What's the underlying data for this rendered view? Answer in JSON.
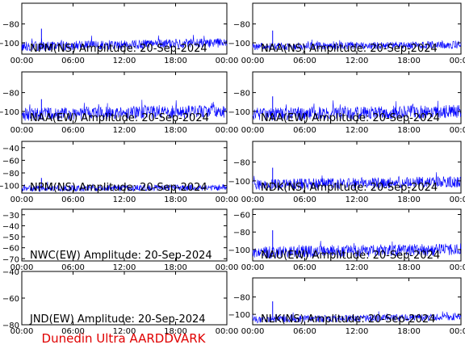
{
  "footer": {
    "text": "Dunedin Ultra AARDDVARK",
    "color": "#e00000"
  },
  "style": {
    "trace_color": "#0000ff",
    "axis_color": "#000000",
    "footer_color": "#e00000"
  },
  "chart_data": [
    {
      "type": "line",
      "title": "NPM(NS) Amplitude: 20-Sep-2024",
      "xticks": [
        "00:00",
        "06:00",
        "12:00",
        "18:00",
        "00:00"
      ],
      "yticks": [
        -80,
        -100
      ],
      "ylim": [
        -112,
        -58
      ],
      "series": [
        {
          "baseline": -104,
          "noise": 5,
          "spike_time_h": 2.3,
          "spike_value": -85,
          "late_lift": 4
        }
      ]
    },
    {
      "type": "line",
      "title": "NAA(NS) Amplitude: 20-Sep-2024",
      "xticks": [
        "00:00",
        "06:00",
        "12:00",
        "18:00",
        "00:00"
      ],
      "yticks": [
        -80,
        -100
      ],
      "ylim": [
        -112,
        -58
      ],
      "series": [
        {
          "baseline": -104,
          "noise": 4,
          "spike_time_h": 2.3,
          "spike_value": -87,
          "late_lift": 2
        }
      ]
    },
    {
      "type": "line",
      "title": "NAA(EW) Amplitude: 20-Sep-2024",
      "xticks": [
        "00:00",
        "06:00",
        "12:00",
        "18:00",
        "00:00"
      ],
      "yticks": [
        -80,
        -100
      ],
      "ylim": [
        -113,
        -58
      ],
      "series": [
        {
          "baseline": -103,
          "noise": 7,
          "spike_time_h": 2.3,
          "spike_value": -87,
          "late_lift": 3
        }
      ]
    },
    {
      "type": "line",
      "title": "NAA(EW) Amplitude: 20-Sep-2024",
      "xticks": [
        "00:00",
        "06:00",
        "12:00",
        "18:00",
        "00:00"
      ],
      "yticks": [
        -80,
        -100
      ],
      "ylim": [
        -113,
        -58
      ],
      "series": [
        {
          "baseline": -103,
          "noise": 7,
          "spike_time_h": 2.3,
          "spike_value": -84,
          "late_lift": 3
        }
      ]
    },
    {
      "type": "line",
      "title": "NPM(NS) Amplitude: 20-Sep-2024",
      "xticks": [
        "00:00",
        "06:00",
        "12:00",
        "18:00",
        "00:00"
      ],
      "yticks": [
        -40,
        -60,
        -80,
        -100
      ],
      "ylim": [
        -112,
        -30
      ],
      "series": [
        {
          "baseline": -105,
          "noise": 5,
          "spike_time_h": 2.3,
          "spike_value": -88,
          "late_lift": 2
        }
      ]
    },
    {
      "type": "line",
      "title": "NDK(NS) Amplitude: 20-Sep-2024",
      "xticks": [
        "00:00",
        "06:00",
        "12:00",
        "18:00",
        "00:00"
      ],
      "yticks": [
        -80,
        -100
      ],
      "ylim": [
        -113,
        -58
      ],
      "series": [
        {
          "baseline": -104,
          "noise": 6,
          "spike_time_h": 2.3,
          "spike_value": -86,
          "late_lift": 3
        }
      ]
    },
    {
      "type": "line",
      "title": "NWC(EW) Amplitude: 20-Sep-2024",
      "xticks": [
        "00:00",
        "06:00",
        "12:00",
        "18:00",
        "00:00"
      ],
      "yticks": [
        -30,
        -40,
        -50,
        -60,
        -70
      ],
      "ylim": [
        -72,
        -25
      ],
      "series": []
    },
    {
      "type": "line",
      "title": "NAU(EW) Amplitude: 20-Sep-2024",
      "xticks": [
        "00:00",
        "06:00",
        "12:00",
        "18:00",
        "00:00"
      ],
      "yticks": [
        -60,
        -80,
        -100
      ],
      "ylim": [
        -113,
        -54
      ],
      "series": [
        {
          "baseline": -103,
          "noise": 7,
          "spike_time_h": 2.3,
          "spike_value": -78,
          "late_lift": 3
        }
      ]
    },
    {
      "type": "line",
      "title": "JND(EW) Amplitude: 20-Sep-2024",
      "xticks": [
        "00:00",
        "06:00",
        "12:00",
        "18:00",
        "00:00"
      ],
      "yticks": [
        -40,
        -60,
        -80
      ],
      "ylim": [
        -80,
        -40
      ],
      "series": []
    },
    {
      "type": "line",
      "title": "NLK(NS) Amplitude: 20-Sep-2024",
      "xticks": [
        "00:00",
        "06:00",
        "12:00",
        "18:00",
        "00:00"
      ],
      "yticks": [
        -80,
        -100
      ],
      "ylim": [
        -112,
        -58
      ],
      "series": [
        {
          "baseline": -106,
          "noise": 4,
          "spike_time_h": 2.3,
          "spike_value": -85,
          "late_lift": 3
        }
      ]
    }
  ]
}
